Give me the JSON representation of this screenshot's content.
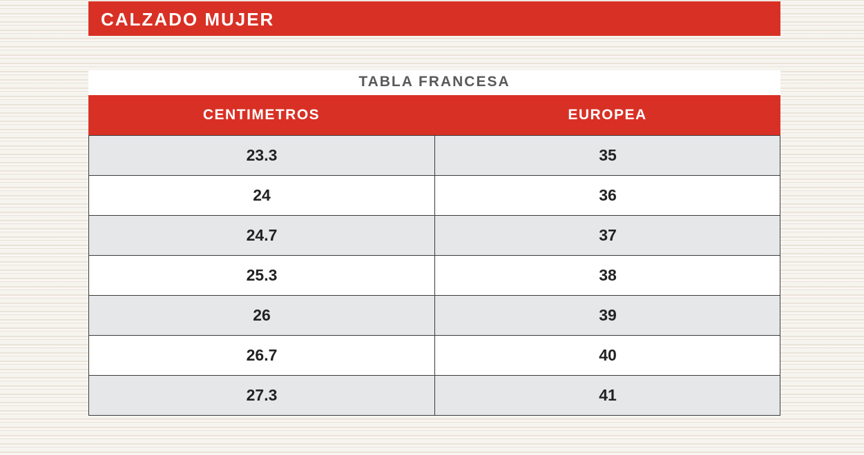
{
  "title": "CALZADO MUJER",
  "subtitle": "TABLA FRANCESA",
  "colors": {
    "accent": "#d93025",
    "row_alt": "#e6e7e8"
  },
  "columns": [
    "CENTIMETROS",
    "EUROPEA"
  ],
  "rows": [
    [
      "23.3",
      "35"
    ],
    [
      "24",
      "36"
    ],
    [
      "24.7",
      "37"
    ],
    [
      "25.3",
      "38"
    ],
    [
      "26",
      "39"
    ],
    [
      "26.7",
      "40"
    ],
    [
      "27.3",
      "41"
    ]
  ]
}
